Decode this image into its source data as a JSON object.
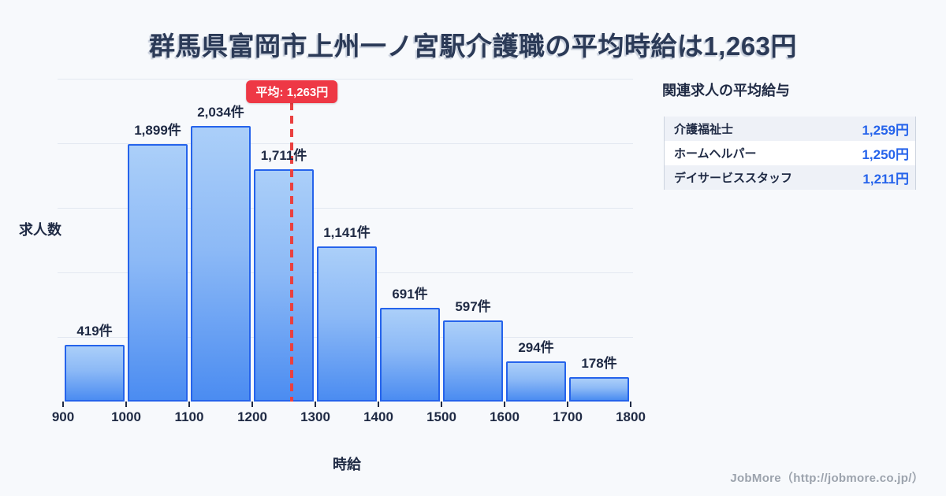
{
  "title": "群馬県富岡市上州一ノ宮駅介護職の平均時給は1,263円",
  "chart_data": {
    "type": "bar",
    "title": "群馬県富岡市上州一ノ宮駅介護職の平均時給は1,263円",
    "xlabel": "時給",
    "ylabel": "求人数",
    "bin_start": 900,
    "bin_width": 100,
    "categories": [
      "900-1000",
      "1000-1100",
      "1100-1200",
      "1200-1300",
      "1300-1400",
      "1400-1500",
      "1500-1600",
      "1600-1700",
      "1700-1800"
    ],
    "values": [
      419,
      1899,
      2034,
      1711,
      1141,
      691,
      597,
      294,
      178
    ],
    "bar_labels": [
      "419件",
      "1,899件",
      "2,034件",
      "1,711件",
      "1,141件",
      "691件",
      "597件",
      "294件",
      "178件"
    ],
    "x_ticks": [
      "900",
      "1000",
      "1100",
      "1200",
      "1300",
      "1400",
      "1500",
      "1600",
      "1700",
      "1800"
    ],
    "ylim": [
      0,
      2380
    ],
    "grid": true,
    "legend": "none",
    "mean_line": {
      "value": 1263,
      "label": "平均: 1,263円"
    }
  },
  "panel": {
    "title": "関連求人の平均給与",
    "rows": [
      {
        "label": "介護福祉士",
        "value": "1,259円"
      },
      {
        "label": "ホームヘルパー",
        "value": "1,250円"
      },
      {
        "label": "デイサービススタッフ",
        "value": "1,211円"
      }
    ]
  },
  "footer": {
    "credit": "JobMore（http://jobmore.co.jp/）"
  },
  "colors": {
    "bar_border": "#2563eb",
    "bar_gradient_top": "#abcff9",
    "bar_gradient_bottom": "#4b8cf1",
    "mean_red": "#ee3845",
    "navy_text": "#1f2a44",
    "grid_line": "#e3e8f1",
    "background": "#f7f9fc",
    "value_blue": "#2563eb"
  }
}
